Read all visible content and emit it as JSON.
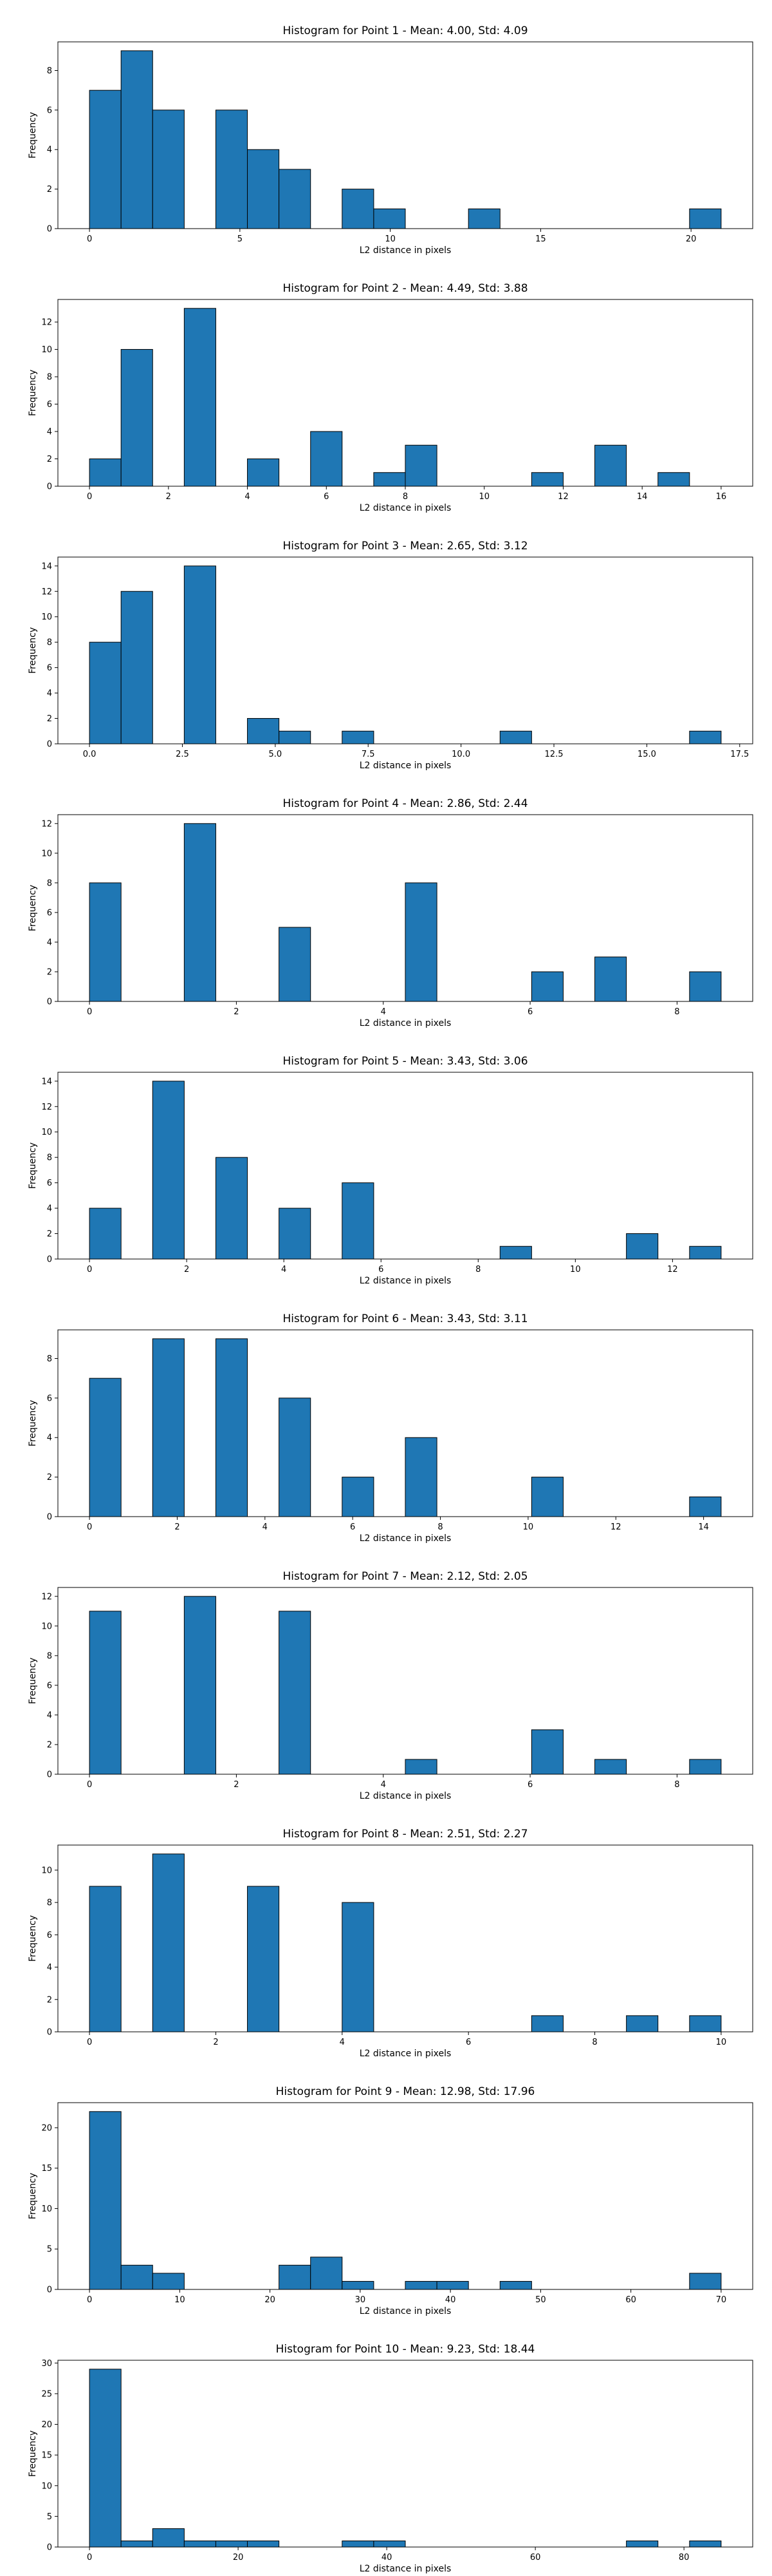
{
  "chart_data": [
    {
      "type": "bar",
      "title": "Histogram for Point 1 - Mean: 4.00, Std: 4.09",
      "xlabel": "L2 distance in pixels",
      "ylabel": "Frequency",
      "xlim": [
        -1.05,
        22.05
      ],
      "ylim": [
        0,
        9.45
      ],
      "xticks": [
        0,
        5,
        10,
        15,
        20
      ],
      "yticks": [
        0,
        2,
        4,
        6,
        8
      ],
      "bin_edges": [
        0,
        1.05,
        2.1,
        3.15,
        4.2,
        5.25,
        6.3,
        7.35,
        8.4,
        9.45,
        10.5,
        11.55,
        12.6,
        13.65,
        14.7,
        15.75,
        16.8,
        17.85,
        18.9,
        19.95,
        21.0
      ],
      "values": [
        7,
        9,
        6,
        0,
        6,
        4,
        3,
        0,
        2,
        1,
        0,
        0,
        1,
        0,
        0,
        0,
        0,
        0,
        0,
        1
      ],
      "grid": false,
      "bar_color": "#1f77b4"
    },
    {
      "type": "bar",
      "title": "Histogram for Point 2 - Mean: 4.49, Std: 3.88",
      "xlabel": "L2 distance in pixels",
      "ylabel": "Frequency",
      "xlim": [
        -0.8,
        16.8
      ],
      "ylim": [
        0,
        13.65
      ],
      "xticks": [
        0,
        2,
        4,
        6,
        8,
        10,
        12,
        14,
        16
      ],
      "yticks": [
        0,
        2,
        4,
        6,
        8,
        10,
        12
      ],
      "bin_edges": [
        0,
        0.8,
        1.6,
        2.4,
        3.2,
        4.0,
        4.8,
        5.6,
        6.4,
        7.2,
        8.0,
        8.8,
        9.6,
        10.4,
        11.2,
        12.0,
        12.8,
        13.6,
        14.4,
        15.2,
        16.0
      ],
      "values": [
        2,
        10,
        0,
        13,
        0,
        2,
        0,
        4,
        0,
        1,
        3,
        0,
        0,
        0,
        1,
        0,
        3,
        0,
        1,
        0
      ],
      "grid": false,
      "bar_color": "#1f77b4"
    },
    {
      "type": "bar",
      "title": "Histogram for Point 3 - Mean: 2.65, Std: 3.12",
      "xlabel": "L2 distance in pixels",
      "ylabel": "Frequency",
      "xlim": [
        -0.85,
        17.85
      ],
      "ylim": [
        0,
        14.7
      ],
      "xticks": [
        0.0,
        2.5,
        5.0,
        7.5,
        10.0,
        12.5,
        15.0,
        17.5
      ],
      "xtick_labels": [
        "0.0",
        "2.5",
        "5.0",
        "7.5",
        "10.0",
        "12.5",
        "15.0",
        "17.5"
      ],
      "yticks": [
        0,
        2,
        4,
        6,
        8,
        10,
        12,
        14
      ],
      "bin_edges": [
        0,
        0.85,
        1.7,
        2.55,
        3.4,
        4.25,
        5.1,
        5.95,
        6.8,
        7.65,
        8.5,
        9.35,
        10.2,
        11.05,
        11.9,
        12.75,
        13.6,
        14.45,
        15.3,
        16.15,
        17.0
      ],
      "values": [
        8,
        12,
        0,
        14,
        0,
        2,
        1,
        0,
        1,
        0,
        0,
        0,
        0,
        1,
        0,
        0,
        0,
        0,
        0,
        1
      ],
      "grid": false,
      "bar_color": "#1f77b4"
    },
    {
      "type": "bar",
      "title": "Histogram for Point 4 - Mean: 2.86, Std: 2.44",
      "xlabel": "L2 distance in pixels",
      "ylabel": "Frequency",
      "xlim": [
        -0.43,
        9.03
      ],
      "ylim": [
        0,
        12.6
      ],
      "xticks": [
        0,
        2,
        4,
        6,
        8
      ],
      "yticks": [
        0,
        2,
        4,
        6,
        8,
        10,
        12
      ],
      "bin_edges": [
        0,
        0.43,
        0.86,
        1.29,
        1.72,
        2.15,
        2.58,
        3.01,
        3.44,
        3.87,
        4.3,
        4.73,
        5.16,
        5.59,
        6.02,
        6.45,
        6.88,
        7.31,
        7.74,
        8.17,
        8.6
      ],
      "values": [
        8,
        0,
        0,
        12,
        0,
        0,
        5,
        0,
        0,
        0,
        8,
        0,
        0,
        0,
        2,
        0,
        3,
        0,
        0,
        2
      ],
      "grid": false,
      "bar_color": "#1f77b4"
    },
    {
      "type": "bar",
      "title": "Histogram for Point 5 - Mean: 3.43, Std: 3.06",
      "xlabel": "L2 distance in pixels",
      "ylabel": "Frequency",
      "xlim": [
        -0.65,
        13.65
      ],
      "ylim": [
        0,
        14.7
      ],
      "xticks": [
        0,
        2,
        4,
        6,
        8,
        10,
        12
      ],
      "yticks": [
        0,
        2,
        4,
        6,
        8,
        10,
        12,
        14
      ],
      "bin_edges": [
        0,
        0.65,
        1.3,
        1.95,
        2.6,
        3.25,
        3.9,
        4.55,
        5.2,
        5.85,
        6.5,
        7.15,
        7.8,
        8.45,
        9.1,
        9.75,
        10.4,
        11.05,
        11.7,
        12.35,
        13.0
      ],
      "values": [
        4,
        0,
        14,
        0,
        8,
        0,
        4,
        0,
        6,
        0,
        0,
        0,
        0,
        1,
        0,
        0,
        0,
        2,
        0,
        1
      ],
      "grid": false,
      "bar_color": "#1f77b4"
    },
    {
      "type": "bar",
      "title": "Histogram for Point 6 - Mean: 3.43, Std: 3.11",
      "xlabel": "L2 distance in pixels",
      "ylabel": "Frequency",
      "xlim": [
        -0.72,
        15.12
      ],
      "ylim": [
        0,
        9.45
      ],
      "xticks": [
        0,
        2,
        4,
        6,
        8,
        10,
        12,
        14
      ],
      "yticks": [
        0,
        2,
        4,
        6,
        8
      ],
      "bin_edges": [
        0,
        0.72,
        1.44,
        2.16,
        2.88,
        3.6,
        4.32,
        5.04,
        5.76,
        6.48,
        7.2,
        7.92,
        8.64,
        9.36,
        10.08,
        10.8,
        11.52,
        12.24,
        12.96,
        13.68,
        14.4
      ],
      "values": [
        7,
        0,
        9,
        0,
        9,
        0,
        6,
        0,
        2,
        0,
        4,
        0,
        0,
        0,
        2,
        0,
        0,
        0,
        0,
        1
      ],
      "grid": false,
      "bar_color": "#1f77b4"
    },
    {
      "type": "bar",
      "title": "Histogram for Point 7 - Mean: 2.12, Std: 2.05",
      "xlabel": "L2 distance in pixels",
      "ylabel": "Frequency",
      "xlim": [
        -0.43,
        9.03
      ],
      "ylim": [
        0,
        12.6
      ],
      "xticks": [
        0,
        2,
        4,
        6,
        8
      ],
      "yticks": [
        0,
        2,
        4,
        6,
        8,
        10,
        12
      ],
      "bin_edges": [
        0,
        0.43,
        0.86,
        1.29,
        1.72,
        2.15,
        2.58,
        3.01,
        3.44,
        3.87,
        4.3,
        4.73,
        5.16,
        5.59,
        6.02,
        6.45,
        6.88,
        7.31,
        7.74,
        8.17,
        8.6
      ],
      "values": [
        11,
        0,
        0,
        12,
        0,
        0,
        11,
        0,
        0,
        0,
        1,
        0,
        0,
        0,
        3,
        0,
        1,
        0,
        0,
        1
      ],
      "grid": false,
      "bar_color": "#1f77b4"
    },
    {
      "type": "bar",
      "title": "Histogram for Point 8 - Mean: 2.51, Std: 2.27",
      "xlabel": "L2 distance in pixels",
      "ylabel": "Frequency",
      "xlim": [
        -0.5,
        10.5
      ],
      "ylim": [
        0,
        11.55
      ],
      "xticks": [
        0,
        2,
        4,
        6,
        8,
        10
      ],
      "yticks": [
        0,
        2,
        4,
        6,
        8,
        10
      ],
      "bin_edges": [
        0,
        0.5,
        1.0,
        1.5,
        2.0,
        2.5,
        3.0,
        3.5,
        4.0,
        4.5,
        5.0,
        5.5,
        6.0,
        6.5,
        7.0,
        7.5,
        8.0,
        8.5,
        9.0,
        9.5,
        10.0
      ],
      "values": [
        9,
        0,
        11,
        0,
        0,
        9,
        0,
        0,
        8,
        0,
        0,
        0,
        0,
        0,
        1,
        0,
        0,
        1,
        0,
        1
      ],
      "grid": false,
      "bar_color": "#1f77b4"
    },
    {
      "type": "bar",
      "title": "Histogram for Point 9 - Mean: 12.98, Std: 17.96",
      "xlabel": "L2 distance in pixels",
      "ylabel": "Frequency",
      "xlim": [
        -3.5,
        73.5
      ],
      "ylim": [
        0,
        23.1
      ],
      "xticks": [
        0,
        10,
        20,
        30,
        40,
        50,
        60,
        70
      ],
      "yticks": [
        0,
        5,
        10,
        15,
        20
      ],
      "bin_edges": [
        0,
        3.5,
        7.0,
        10.5,
        14.0,
        17.5,
        21.0,
        24.5,
        28.0,
        31.5,
        35.0,
        38.5,
        42.0,
        45.5,
        49.0,
        52.5,
        56.0,
        59.5,
        63.0,
        66.5,
        70.0
      ],
      "values": [
        22,
        3,
        2,
        0,
        0,
        0,
        3,
        4,
        1,
        0,
        1,
        1,
        0,
        1,
        0,
        0,
        0,
        0,
        0,
        2
      ],
      "grid": false,
      "bar_color": "#1f77b4"
    },
    {
      "type": "bar",
      "title": "Histogram for Point 10 - Mean: 9.23, Std: 18.44",
      "xlabel": "L2 distance in pixels",
      "ylabel": "Frequency",
      "xlim": [
        -4.25,
        89.25
      ],
      "ylim": [
        0,
        30.45
      ],
      "xticks": [
        0,
        20,
        40,
        60,
        80
      ],
      "yticks": [
        0,
        5,
        10,
        15,
        20,
        25,
        30
      ],
      "bin_edges": [
        0,
        4.25,
        8.5,
        12.75,
        17.0,
        21.25,
        25.5,
        29.75,
        34.0,
        38.25,
        42.5,
        46.75,
        51.0,
        55.25,
        59.5,
        63.75,
        68.0,
        72.25,
        76.5,
        80.75,
        85.0
      ],
      "values": [
        29,
        1,
        3,
        1,
        1,
        1,
        0,
        0,
        1,
        1,
        0,
        0,
        0,
        0,
        0,
        0,
        0,
        1,
        0,
        1
      ],
      "grid": false,
      "bar_color": "#1f77b4"
    }
  ]
}
